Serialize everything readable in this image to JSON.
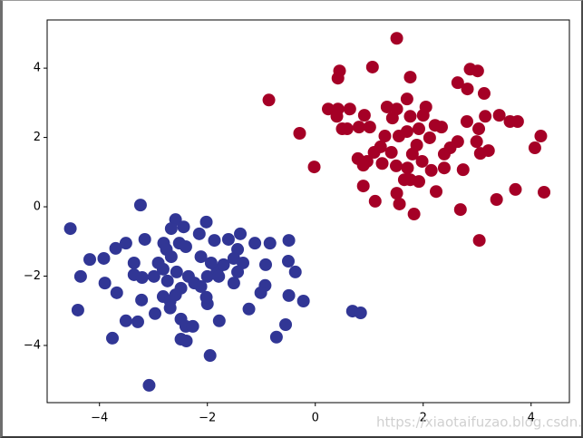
{
  "chart_data": {
    "type": "scatter",
    "xlim": [
      -4.97,
      4.71
    ],
    "ylim": [
      -5.65,
      5.39
    ],
    "xticks": [
      {
        "value": -4,
        "label": "−4"
      },
      {
        "value": -2,
        "label": "−2"
      },
      0,
      2,
      4
    ],
    "yticks": [
      {
        "value": -4,
        "label": "−4"
      },
      {
        "value": -2,
        "label": "−2"
      },
      0,
      2,
      4
    ],
    "series": [
      {
        "color": "#a50026",
        "x": [
          1.51,
          0.45,
          1.06,
          0.42,
          1.76,
          -0.86,
          1.7,
          2.87,
          3.01,
          2.64,
          2.82,
          3.13,
          -0.29,
          0.24,
          0.42,
          0.64,
          0.91,
          0.4,
          0.5,
          0.59,
          0.81,
          1.01,
          1.33,
          1.51,
          1.43,
          1.76,
          2.0,
          2.22,
          2.34,
          3.15,
          3.41,
          3.61,
          3.75,
          2.81,
          3.03,
          2.99,
          4.18,
          4.07,
          3.21,
          3.06,
          2.64,
          2.5,
          2.39,
          2.39,
          2.74,
          2.15,
          1.98,
          1.8,
          1.88,
          2.12,
          1.92,
          1.7,
          1.55,
          1.29,
          1.21,
          1.41,
          1.24,
          1.09,
          0.96,
          0.79,
          0.89,
          1.5,
          1.71,
          1.76,
          1.92,
          1.65,
          1.51,
          1.56,
          1.83,
          1.11,
          0.89,
          -0.02,
          2.24,
          2.69,
          3.36,
          3.71,
          4.24,
          3.04,
          2.05
        ],
        "values": [
          4.86,
          3.92,
          4.03,
          3.71,
          3.74,
          3.08,
          3.11,
          3.97,
          3.92,
          3.58,
          3.4,
          3.27,
          2.12,
          2.82,
          2.82,
          2.82,
          2.64,
          2.61,
          2.25,
          2.25,
          2.3,
          2.3,
          2.88,
          2.82,
          2.56,
          2.61,
          2.64,
          2.35,
          2.3,
          2.61,
          2.64,
          2.46,
          2.46,
          2.46,
          2.25,
          1.88,
          2.04,
          1.7,
          1.62,
          1.54,
          1.88,
          1.7,
          1.52,
          1.12,
          1.07,
          1.05,
          1.31,
          1.52,
          1.78,
          1.99,
          2.25,
          2.17,
          2.04,
          2.04,
          1.73,
          1.57,
          1.25,
          1.57,
          1.31,
          1.39,
          1.2,
          1.18,
          1.12,
          0.78,
          0.73,
          0.78,
          0.39,
          0.08,
          -0.21,
          0.16,
          0.6,
          1.15,
          0.44,
          -0.08,
          0.21,
          0.5,
          0.42,
          -0.97,
          2.88
        ]
      },
      {
        "color": "#313695",
        "x": [
          -4.54,
          -4.18,
          -4.35,
          -3.92,
          -3.9,
          -4.4,
          -3.7,
          -3.51,
          -3.36,
          -3.24,
          -3.16,
          -3.36,
          -3.68,
          -3.51,
          -3.29,
          -3.76,
          -3.22,
          -3.21,
          -2.97,
          -3.08,
          -2.81,
          -2.59,
          -2.67,
          -2.76,
          -2.52,
          -2.44,
          -2.4,
          -2.67,
          -2.82,
          -2.99,
          -2.74,
          -2.57,
          -2.49,
          -2.82,
          -2.69,
          -2.59,
          -2.35,
          -2.24,
          -2.49,
          -2.4,
          -2.49,
          -2.39,
          -2.27,
          -2.0,
          -2.02,
          -2.12,
          -2.0,
          -1.82,
          -1.7,
          -1.93,
          -2.12,
          -2.15,
          -2.02,
          -1.87,
          -1.61,
          -1.39,
          -1.44,
          -1.51,
          -1.34,
          -1.44,
          -1.51,
          -1.12,
          -0.84,
          -0.92,
          -0.49,
          -0.5,
          -0.37,
          -0.93,
          -1.01,
          -0.49,
          -0.22,
          -1.23,
          -1.78,
          -1.95,
          -0.55,
          -0.72,
          0.69,
          0.84,
          -2.91,
          -1.79,
          -2.69
        ],
        "values": [
          -0.63,
          -1.52,
          -2.01,
          -1.49,
          -2.2,
          -2.98,
          -1.2,
          -1.05,
          -1.62,
          0.05,
          -0.94,
          -1.96,
          -2.48,
          -3.29,
          -3.32,
          -3.79,
          -2.69,
          -2.04,
          -3.08,
          -5.15,
          -1.05,
          -0.37,
          -0.63,
          -1.23,
          -1.05,
          -0.58,
          -1.15,
          -1.44,
          -1.8,
          -2.01,
          -2.14,
          -1.88,
          -2.35,
          -2.59,
          -2.72,
          -2.54,
          -2.01,
          -2.2,
          -3.24,
          -3.45,
          -3.82,
          -3.87,
          -3.45,
          -2.8,
          -2.61,
          -2.3,
          -2.01,
          -1.83,
          -1.67,
          -1.62,
          -1.44,
          -0.78,
          -0.44,
          -0.97,
          -0.94,
          -0.78,
          -1.23,
          -1.49,
          -1.62,
          -1.88,
          -2.2,
          -1.05,
          -1.05,
          -1.67,
          -0.97,
          -1.57,
          -1.88,
          -2.27,
          -2.48,
          -2.56,
          -2.72,
          -2.95,
          -3.29,
          -4.29,
          -3.4,
          -3.76,
          -3.01,
          -3.06,
          -1.62,
          -2.01,
          -2.92
        ]
      }
    ]
  },
  "watermark": "https://xiaotaifuzao.blog.csdn.net"
}
